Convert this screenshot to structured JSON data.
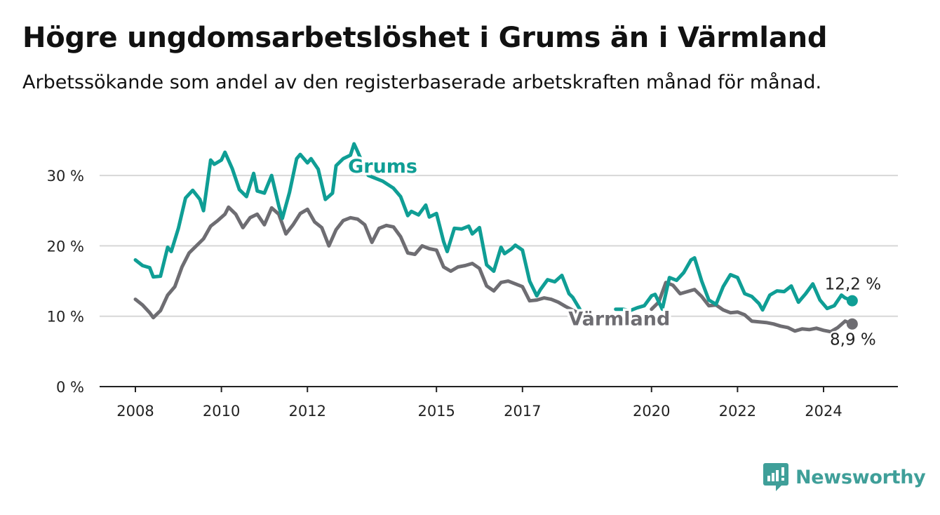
{
  "header": {
    "title": "Högre ungdomsarbetslöshet i Grums än i Värmland",
    "subtitle": "Arbetssökande som andel av den registerbaserade arbetskraften månad för månad."
  },
  "brand": {
    "name": "Newsworthy",
    "color": "#3f9f99"
  },
  "chart_data": {
    "type": "line",
    "title": "Högre ungdomsarbetslöshet i Grums än i Värmland",
    "subtitle": "Arbetssökande som andel av den registerbaserade arbetskraften månad för månad.",
    "xlabel": "",
    "ylabel": "",
    "x_ticks": [
      "2008",
      "2010",
      "2012",
      "2015",
      "2017",
      "2020",
      "2022",
      "2024"
    ],
    "y_ticks": [
      "0 %",
      "10 %",
      "20 %",
      "30 %"
    ],
    "ylim": [
      0,
      35
    ],
    "xlim": [
      "2008-01",
      "2025-06"
    ],
    "grid": "horizontal",
    "legend": "inline labels",
    "series": [
      {
        "name": "Grums",
        "color": "#0f9e95",
        "label_point": "2013-10",
        "end_label": "12,2 %",
        "end_value": 12.2,
        "points": [
          [
            "2008-01",
            18.0
          ],
          [
            "2008-03",
            17.2
          ],
          [
            "2008-05",
            16.9
          ],
          [
            "2008-06",
            15.6
          ],
          [
            "2008-08",
            15.7
          ],
          [
            "2008-10",
            19.8
          ],
          [
            "2008-11",
            19.2
          ],
          [
            "2009-01",
            22.5
          ],
          [
            "2009-03",
            26.8
          ],
          [
            "2009-05",
            27.9
          ],
          [
            "2009-07",
            26.6
          ],
          [
            "2009-08",
            25.0
          ],
          [
            "2009-10",
            32.2
          ],
          [
            "2009-11",
            31.6
          ],
          [
            "2010-01",
            32.2
          ],
          [
            "2010-02",
            33.3
          ],
          [
            "2010-04",
            31.0
          ],
          [
            "2010-06",
            28.0
          ],
          [
            "2010-08",
            27.0
          ],
          [
            "2010-10",
            30.3
          ],
          [
            "2010-11",
            27.8
          ],
          [
            "2011-01",
            27.5
          ],
          [
            "2011-03",
            30.0
          ],
          [
            "2011-05",
            25.7
          ],
          [
            "2011-06",
            23.9
          ],
          [
            "2011-08",
            27.6
          ],
          [
            "2011-10",
            32.4
          ],
          [
            "2011-11",
            33.0
          ],
          [
            "2012-01",
            31.8
          ],
          [
            "2012-02",
            32.4
          ],
          [
            "2012-04",
            30.9
          ],
          [
            "2012-06",
            26.6
          ],
          [
            "2012-08",
            27.5
          ],
          [
            "2012-09",
            31.4
          ],
          [
            "2012-11",
            32.4
          ],
          [
            "2013-01",
            32.9
          ],
          [
            "2013-02",
            34.5
          ],
          [
            "2013-03",
            33.4
          ],
          [
            "2013-05",
            31.0
          ],
          [
            "2013-06",
            30.0
          ],
          [
            "2013-10",
            29.2
          ],
          [
            "2014-01",
            28.2
          ],
          [
            "2014-03",
            27.0
          ],
          [
            "2014-05",
            24.3
          ],
          [
            "2014-06",
            24.9
          ],
          [
            "2014-08",
            24.4
          ],
          [
            "2014-10",
            25.8
          ],
          [
            "2014-11",
            24.1
          ],
          [
            "2015-01",
            24.6
          ],
          [
            "2015-03",
            20.6
          ],
          [
            "2015-04",
            19.2
          ],
          [
            "2015-06",
            22.5
          ],
          [
            "2015-08",
            22.4
          ],
          [
            "2015-10",
            22.8
          ],
          [
            "2015-11",
            21.7
          ],
          [
            "2016-01",
            22.6
          ],
          [
            "2016-03",
            17.3
          ],
          [
            "2016-05",
            16.4
          ],
          [
            "2016-07",
            19.8
          ],
          [
            "2016-08",
            18.9
          ],
          [
            "2016-10",
            19.6
          ],
          [
            "2016-11",
            20.1
          ],
          [
            "2017-01",
            19.4
          ],
          [
            "2017-03",
            15.0
          ],
          [
            "2017-05",
            12.9
          ],
          [
            "2017-06",
            13.8
          ],
          [
            "2017-08",
            15.2
          ],
          [
            "2017-10",
            14.9
          ],
          [
            "2017-12",
            15.8
          ],
          [
            "2018-02",
            13.2
          ],
          [
            "2018-03",
            12.7
          ],
          [
            "2018-05",
            11.0
          ]
        ],
        "points_late": [
          [
            "2019-03",
            11.0
          ],
          [
            "2019-05",
            11.0
          ],
          [
            "2019-07",
            10.8
          ],
          [
            "2019-09",
            11.2
          ],
          [
            "2019-11",
            11.5
          ],
          [
            "2020-01",
            12.9
          ],
          [
            "2020-02",
            13.1
          ],
          [
            "2020-04",
            11.0
          ],
          [
            "2020-06",
            15.5
          ],
          [
            "2020-08",
            15.1
          ],
          [
            "2020-10",
            16.2
          ],
          [
            "2020-12",
            18.0
          ],
          [
            "2021-01",
            18.3
          ],
          [
            "2021-03",
            15.0
          ],
          [
            "2021-05",
            12.3
          ],
          [
            "2021-07",
            11.7
          ],
          [
            "2021-09",
            14.2
          ],
          [
            "2021-11",
            15.9
          ],
          [
            "2022-01",
            15.5
          ],
          [
            "2022-03",
            13.2
          ],
          [
            "2022-05",
            12.8
          ],
          [
            "2022-07",
            11.8
          ],
          [
            "2022-08",
            10.9
          ],
          [
            "2022-10",
            13.0
          ],
          [
            "2022-12",
            13.6
          ],
          [
            "2023-02",
            13.5
          ],
          [
            "2023-04",
            14.3
          ],
          [
            "2023-06",
            12.0
          ],
          [
            "2023-08",
            13.2
          ],
          [
            "2023-10",
            14.6
          ],
          [
            "2023-12",
            12.3
          ],
          [
            "2024-02",
            11.1
          ],
          [
            "2024-04",
            11.5
          ],
          [
            "2024-06",
            13.0
          ],
          [
            "2024-07",
            12.6
          ],
          [
            "2024-09",
            12.2
          ]
        ]
      },
      {
        "name": "Värmland",
        "color": "#6e6d72",
        "label_point": "2019-04",
        "end_label": "8,9 %",
        "end_value": 8.9,
        "points": [
          [
            "2008-01",
            12.4
          ],
          [
            "2008-03",
            11.6
          ],
          [
            "2008-05",
            10.5
          ],
          [
            "2008-06",
            9.8
          ],
          [
            "2008-08",
            10.8
          ],
          [
            "2008-10",
            13.0
          ],
          [
            "2008-12",
            14.2
          ],
          [
            "2009-02",
            17.0
          ],
          [
            "2009-04",
            19.0
          ],
          [
            "2009-06",
            20.0
          ],
          [
            "2009-08",
            21.0
          ],
          [
            "2009-10",
            22.8
          ],
          [
            "2009-12",
            23.6
          ],
          [
            "2010-02",
            24.5
          ],
          [
            "2010-03",
            25.5
          ],
          [
            "2010-05",
            24.5
          ],
          [
            "2010-07",
            22.6
          ],
          [
            "2010-09",
            24.0
          ],
          [
            "2010-11",
            24.5
          ],
          [
            "2011-01",
            23.0
          ],
          [
            "2011-03",
            25.4
          ],
          [
            "2011-05",
            24.5
          ],
          [
            "2011-07",
            21.7
          ],
          [
            "2011-09",
            23.0
          ],
          [
            "2011-11",
            24.6
          ],
          [
            "2012-01",
            25.2
          ],
          [
            "2012-03",
            23.4
          ],
          [
            "2012-05",
            22.6
          ],
          [
            "2012-07",
            20.0
          ],
          [
            "2012-09",
            22.3
          ],
          [
            "2012-11",
            23.6
          ],
          [
            "2013-01",
            24.0
          ],
          [
            "2013-03",
            23.8
          ],
          [
            "2013-05",
            23.0
          ],
          [
            "2013-07",
            20.5
          ],
          [
            "2013-09",
            22.5
          ],
          [
            "2013-11",
            22.9
          ],
          [
            "2014-01",
            22.7
          ],
          [
            "2014-03",
            21.3
          ],
          [
            "2014-05",
            19.0
          ],
          [
            "2014-07",
            18.8
          ],
          [
            "2014-09",
            20.0
          ],
          [
            "2014-11",
            19.6
          ],
          [
            "2015-01",
            19.4
          ],
          [
            "2015-03",
            17.0
          ],
          [
            "2015-05",
            16.4
          ],
          [
            "2015-07",
            17.0
          ],
          [
            "2015-09",
            17.2
          ],
          [
            "2015-11",
            17.5
          ],
          [
            "2016-01",
            16.8
          ],
          [
            "2016-03",
            14.3
          ],
          [
            "2016-05",
            13.6
          ],
          [
            "2016-07",
            14.8
          ],
          [
            "2016-09",
            15.0
          ],
          [
            "2016-11",
            14.6
          ],
          [
            "2017-01",
            14.2
          ],
          [
            "2017-03",
            12.2
          ],
          [
            "2017-05",
            12.3
          ],
          [
            "2017-07",
            12.6
          ],
          [
            "2017-09",
            12.4
          ],
          [
            "2017-11",
            12.0
          ],
          [
            "2018-01",
            11.4
          ],
          [
            "2018-04",
            10.6
          ]
        ],
        "points_late": [
          [
            "2020-01",
            11.0
          ],
          [
            "2020-03",
            12.0
          ],
          [
            "2020-05",
            14.8
          ],
          [
            "2020-07",
            14.4
          ],
          [
            "2020-09",
            13.2
          ],
          [
            "2020-11",
            13.5
          ],
          [
            "2021-01",
            13.8
          ],
          [
            "2021-03",
            12.8
          ],
          [
            "2021-05",
            11.5
          ],
          [
            "2021-07",
            11.6
          ],
          [
            "2021-09",
            10.9
          ],
          [
            "2021-11",
            10.5
          ],
          [
            "2022-01",
            10.6
          ],
          [
            "2022-03",
            10.2
          ],
          [
            "2022-05",
            9.3
          ],
          [
            "2022-07",
            9.2
          ],
          [
            "2022-09",
            9.1
          ],
          [
            "2022-11",
            8.9
          ],
          [
            "2023-01",
            8.6
          ],
          [
            "2023-03",
            8.4
          ],
          [
            "2023-05",
            7.9
          ],
          [
            "2023-07",
            8.2
          ],
          [
            "2023-09",
            8.1
          ],
          [
            "2023-11",
            8.3
          ],
          [
            "2024-01",
            8.0
          ],
          [
            "2024-03",
            7.8
          ],
          [
            "2024-05",
            8.4
          ],
          [
            "2024-07",
            9.3
          ],
          [
            "2024-09",
            8.9
          ]
        ]
      }
    ]
  }
}
